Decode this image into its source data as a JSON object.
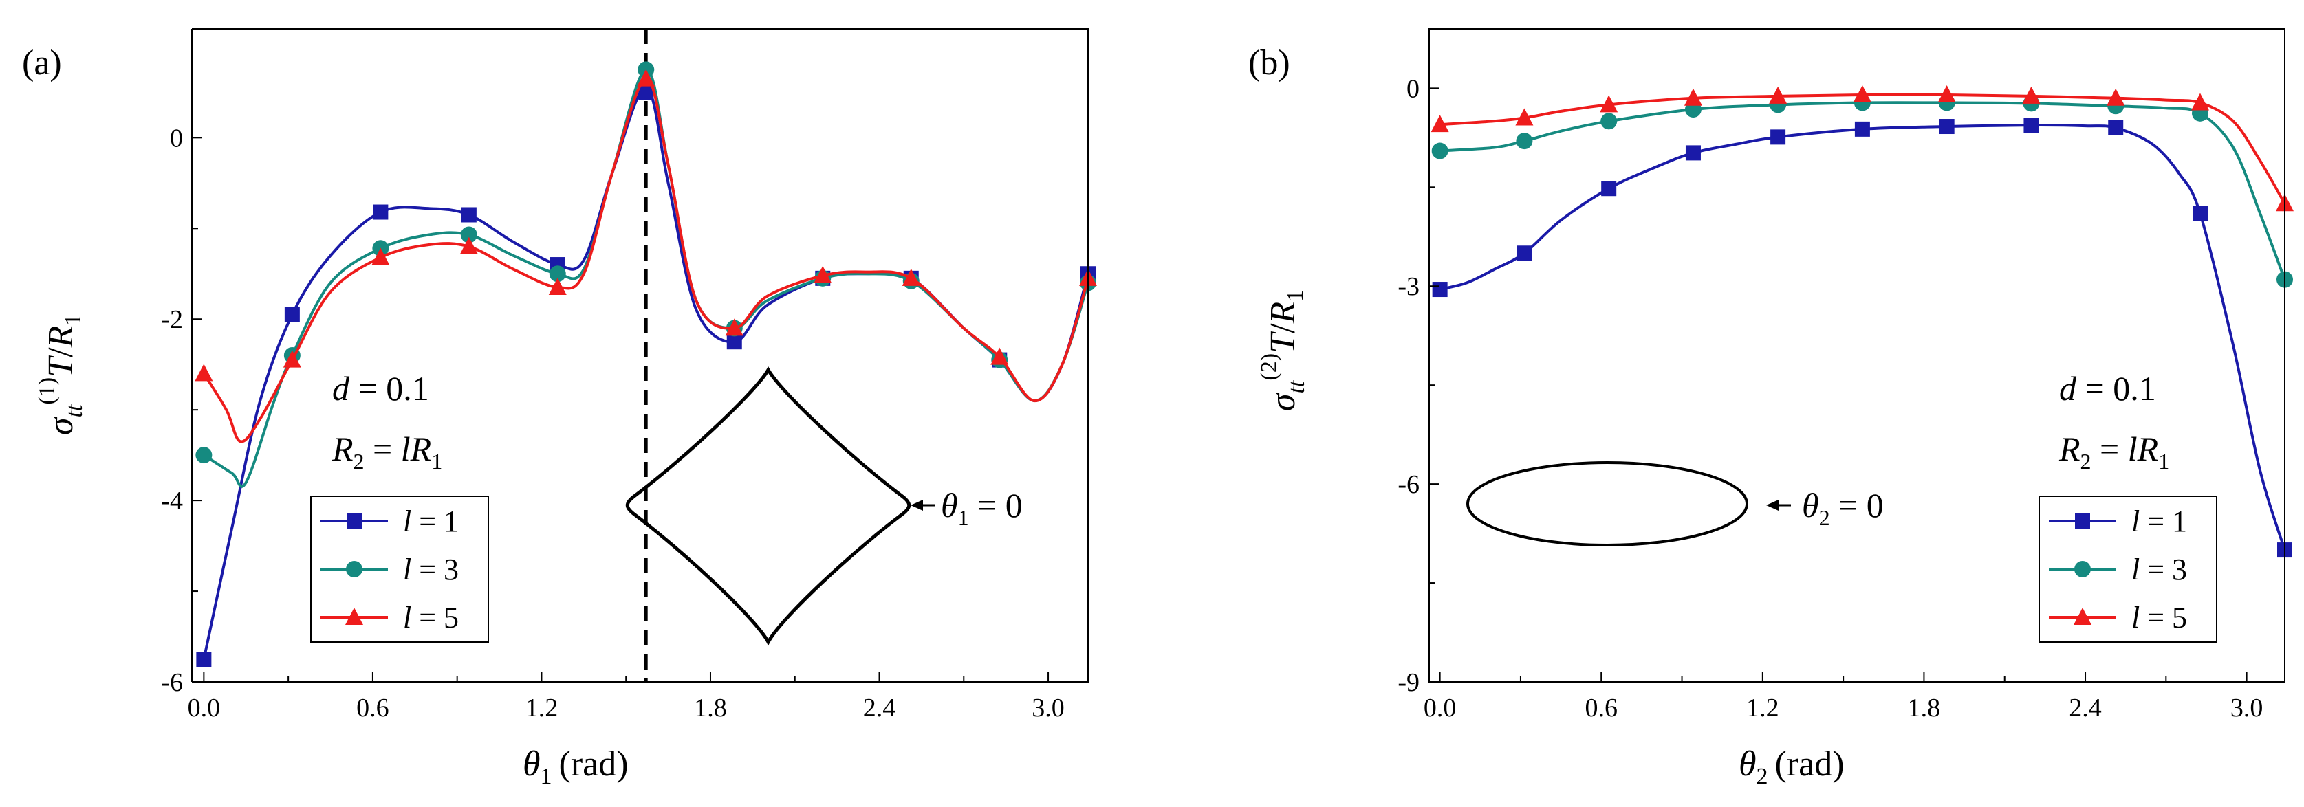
{
  "chart_data": [
    {
      "panel": "(a)",
      "type": "line",
      "xlabel_symbol": "θ",
      "xlabel_sub": "1",
      "xlabel_unit": "(rad)",
      "ylabel": "σtt(1)T/R1",
      "xlim": [
        -0.04,
        3.1416
      ],
      "ylim": [
        -6,
        1.2
      ],
      "xticks": [
        "0.0",
        "0.6",
        "1.2",
        "1.8",
        "2.4",
        "3.0"
      ],
      "xtick_values": [
        0,
        0.6,
        1.2,
        1.8,
        2.4,
        3.0
      ],
      "yticks": [
        "-6",
        "-4",
        "-2",
        "0"
      ],
      "ytick_values": [
        -6,
        -4,
        -2,
        0
      ],
      "vline_x": 1.5708,
      "annotation_d": "d = 0.1",
      "annotation_R": "R2 = lR1",
      "annotation_theta": "θ1 = 0",
      "legend": [
        "l = 1",
        "l = 3",
        "l = 5"
      ],
      "series": [
        {
          "name": "l = 1",
          "color": "#1a1aa8",
          "marker": "square",
          "curve": [
            [
              0,
              -5.75
            ],
            [
              0.1,
              -4.3
            ],
            [
              0.2,
              -2.9
            ],
            [
              0.314,
              -1.95
            ],
            [
              0.45,
              -1.3
            ],
            [
              0.628,
              -0.82
            ],
            [
              0.8,
              -0.78
            ],
            [
              0.942,
              -0.85
            ],
            [
              1.1,
              -1.15
            ],
            [
              1.257,
              -1.4
            ],
            [
              1.35,
              -1.35
            ],
            [
              1.45,
              -0.4
            ],
            [
              1.571,
              0.55
            ],
            [
              1.65,
              -0.5
            ],
            [
              1.75,
              -1.9
            ],
            [
              1.885,
              -2.25
            ],
            [
              2.0,
              -1.85
            ],
            [
              2.199,
              -1.55
            ],
            [
              2.35,
              -1.5
            ],
            [
              2.513,
              -1.55
            ],
            [
              2.7,
              -2.1
            ],
            [
              2.827,
              -2.45
            ],
            [
              2.95,
              -2.9
            ],
            [
              3.05,
              -2.5
            ],
            [
              3.1416,
              -1.5
            ]
          ],
          "points": [
            [
              0,
              -5.75
            ],
            [
              0.314,
              -1.95
            ],
            [
              0.628,
              -0.82
            ],
            [
              0.942,
              -0.85
            ],
            [
              1.257,
              -1.4
            ],
            [
              1.571,
              0.5
            ],
            [
              1.885,
              -2.25
            ],
            [
              2.199,
              -1.55
            ],
            [
              2.513,
              -1.55
            ],
            [
              2.827,
              -2.45
            ],
            [
              3.1416,
              -1.5
            ]
          ]
        },
        {
          "name": "l = 3",
          "color": "#158a80",
          "marker": "circle",
          "curve": [
            [
              0,
              -3.5
            ],
            [
              0.1,
              -3.7
            ],
            [
              0.15,
              -3.8
            ],
            [
              0.25,
              -2.9
            ],
            [
              0.314,
              -2.4
            ],
            [
              0.45,
              -1.6
            ],
            [
              0.628,
              -1.22
            ],
            [
              0.8,
              -1.07
            ],
            [
              0.942,
              -1.07
            ],
            [
              1.1,
              -1.3
            ],
            [
              1.257,
              -1.5
            ],
            [
              1.35,
              -1.45
            ],
            [
              1.45,
              -0.4
            ],
            [
              1.571,
              0.75
            ],
            [
              1.65,
              -0.3
            ],
            [
              1.75,
              -1.8
            ],
            [
              1.885,
              -2.1
            ],
            [
              2.0,
              -1.8
            ],
            [
              2.199,
              -1.55
            ],
            [
              2.35,
              -1.5
            ],
            [
              2.513,
              -1.58
            ],
            [
              2.7,
              -2.1
            ],
            [
              2.827,
              -2.45
            ],
            [
              2.95,
              -2.9
            ],
            [
              3.05,
              -2.5
            ],
            [
              3.1416,
              -1.6
            ]
          ],
          "points": [
            [
              0,
              -3.5
            ],
            [
              0.314,
              -2.4
            ],
            [
              0.628,
              -1.22
            ],
            [
              0.942,
              -1.07
            ],
            [
              1.257,
              -1.5
            ],
            [
              1.571,
              0.75
            ],
            [
              1.885,
              -2.1
            ],
            [
              2.199,
              -1.55
            ],
            [
              2.513,
              -1.58
            ],
            [
              2.827,
              -2.45
            ],
            [
              3.1416,
              -1.6
            ]
          ]
        },
        {
          "name": "l = 5",
          "color": "#ee1c1c",
          "marker": "triangle",
          "curve": [
            [
              0,
              -2.6
            ],
            [
              0.08,
              -3.0
            ],
            [
              0.13,
              -3.35
            ],
            [
              0.2,
              -3.1
            ],
            [
              0.314,
              -2.45
            ],
            [
              0.45,
              -1.7
            ],
            [
              0.628,
              -1.32
            ],
            [
              0.8,
              -1.18
            ],
            [
              0.942,
              -1.2
            ],
            [
              1.1,
              -1.45
            ],
            [
              1.257,
              -1.65
            ],
            [
              1.35,
              -1.5
            ],
            [
              1.45,
              -0.4
            ],
            [
              1.571,
              0.65
            ],
            [
              1.65,
              -0.3
            ],
            [
              1.75,
              -1.8
            ],
            [
              1.885,
              -2.1
            ],
            [
              2.0,
              -1.75
            ],
            [
              2.199,
              -1.52
            ],
            [
              2.35,
              -1.48
            ],
            [
              2.513,
              -1.55
            ],
            [
              2.7,
              -2.1
            ],
            [
              2.827,
              -2.42
            ],
            [
              2.95,
              -2.9
            ],
            [
              3.05,
              -2.5
            ],
            [
              3.1416,
              -1.55
            ]
          ],
          "points": [
            [
              0,
              -2.6
            ],
            [
              0.314,
              -2.45
            ],
            [
              0.628,
              -1.32
            ],
            [
              0.942,
              -1.2
            ],
            [
              1.257,
              -1.65
            ],
            [
              1.571,
              0.65
            ],
            [
              1.885,
              -2.1
            ],
            [
              2.199,
              -1.52
            ],
            [
              2.513,
              -1.55
            ],
            [
              2.827,
              -2.42
            ],
            [
              3.1416,
              -1.55
            ]
          ]
        }
      ]
    },
    {
      "panel": "(b)",
      "type": "line",
      "xlabel_symbol": "θ",
      "xlabel_sub": "2",
      "xlabel_unit": "(rad)",
      "ylabel": "σtt(2)T/R1",
      "xlim": [
        -0.04,
        3.1416
      ],
      "ylim": [
        -9,
        0.9
      ],
      "xticks": [
        "0.0",
        "0.6",
        "1.2",
        "1.8",
        "2.4",
        "3.0"
      ],
      "xtick_values": [
        0,
        0.6,
        1.2,
        1.8,
        2.4,
        3.0
      ],
      "yticks": [
        "-9",
        "-6",
        "-3",
        "0"
      ],
      "ytick_values": [
        -9,
        -6,
        -3,
        0
      ],
      "annotation_d": "d = 0.1",
      "annotation_R": "R2 = lR1",
      "annotation_theta": "θ2 = 0",
      "legend": [
        "l = 1",
        "l = 3",
        "l = 5"
      ],
      "series": [
        {
          "name": "l = 1",
          "color": "#1a1aa8",
          "marker": "square",
          "curve": [
            [
              0,
              -3.05
            ],
            [
              0.1,
              -2.95
            ],
            [
              0.2,
              -2.75
            ],
            [
              0.314,
              -2.5
            ],
            [
              0.45,
              -2.0
            ],
            [
              0.628,
              -1.52
            ],
            [
              0.8,
              -1.2
            ],
            [
              0.942,
              -0.98
            ],
            [
              1.1,
              -0.85
            ],
            [
              1.257,
              -0.74
            ],
            [
              1.571,
              -0.62
            ],
            [
              1.885,
              -0.58
            ],
            [
              2.199,
              -0.56
            ],
            [
              2.4,
              -0.57
            ],
            [
              2.513,
              -0.6
            ],
            [
              2.65,
              -0.85
            ],
            [
              2.75,
              -1.3
            ],
            [
              2.827,
              -1.9
            ],
            [
              2.95,
              -3.9
            ],
            [
              3.05,
              -5.8
            ],
            [
              3.1416,
              -7.0
            ]
          ],
          "points": [
            [
              0,
              -3.05
            ],
            [
              0.314,
              -2.5
            ],
            [
              0.628,
              -1.52
            ],
            [
              0.942,
              -0.98
            ],
            [
              1.257,
              -0.74
            ],
            [
              1.571,
              -0.62
            ],
            [
              1.885,
              -0.58
            ],
            [
              2.199,
              -0.56
            ],
            [
              2.513,
              -0.6
            ],
            [
              2.827,
              -1.9
            ],
            [
              3.1416,
              -7.0
            ]
          ]
        },
        {
          "name": "l = 3",
          "color": "#158a80",
          "marker": "circle",
          "curve": [
            [
              0,
              -0.95
            ],
            [
              0.2,
              -0.9
            ],
            [
              0.314,
              -0.8
            ],
            [
              0.45,
              -0.65
            ],
            [
              0.628,
              -0.5
            ],
            [
              0.942,
              -0.32
            ],
            [
              1.257,
              -0.25
            ],
            [
              1.571,
              -0.22
            ],
            [
              1.885,
              -0.22
            ],
            [
              2.199,
              -0.23
            ],
            [
              2.513,
              -0.27
            ],
            [
              2.7,
              -0.3
            ],
            [
              2.827,
              -0.38
            ],
            [
              2.95,
              -0.9
            ],
            [
              3.05,
              -1.9
            ],
            [
              3.1416,
              -2.9
            ]
          ],
          "points": [
            [
              0,
              -0.95
            ],
            [
              0.314,
              -0.8
            ],
            [
              0.628,
              -0.5
            ],
            [
              0.942,
              -0.32
            ],
            [
              1.257,
              -0.25
            ],
            [
              1.571,
              -0.22
            ],
            [
              1.885,
              -0.22
            ],
            [
              2.199,
              -0.23
            ],
            [
              2.513,
              -0.27
            ],
            [
              2.827,
              -0.38
            ],
            [
              3.1416,
              -2.9
            ]
          ]
        },
        {
          "name": "l = 5",
          "color": "#ee1c1c",
          "marker": "triangle",
          "curve": [
            [
              0,
              -0.55
            ],
            [
              0.2,
              -0.5
            ],
            [
              0.314,
              -0.45
            ],
            [
              0.45,
              -0.35
            ],
            [
              0.628,
              -0.25
            ],
            [
              0.942,
              -0.15
            ],
            [
              1.257,
              -0.12
            ],
            [
              1.571,
              -0.1
            ],
            [
              1.885,
              -0.1
            ],
            [
              2.199,
              -0.12
            ],
            [
              2.513,
              -0.15
            ],
            [
              2.7,
              -0.18
            ],
            [
              2.827,
              -0.22
            ],
            [
              2.95,
              -0.5
            ],
            [
              3.05,
              -1.1
            ],
            [
              3.1416,
              -1.75
            ]
          ],
          "points": [
            [
              0,
              -0.55
            ],
            [
              0.314,
              -0.45
            ],
            [
              0.628,
              -0.25
            ],
            [
              0.942,
              -0.15
            ],
            [
              1.257,
              -0.12
            ],
            [
              1.571,
              -0.1
            ],
            [
              1.885,
              -0.1
            ],
            [
              2.199,
              -0.12
            ],
            [
              2.513,
              -0.15
            ],
            [
              2.827,
              -0.22
            ],
            [
              3.1416,
              -1.75
            ]
          ]
        }
      ]
    }
  ]
}
